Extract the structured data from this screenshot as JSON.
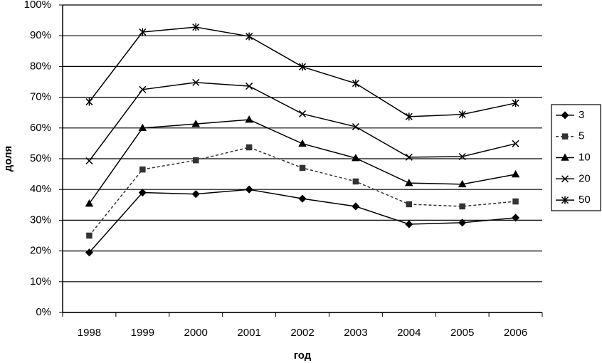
{
  "chart_data": {
    "type": "line",
    "x_label": "год",
    "y_label": "доля",
    "categories": [
      "1998",
      "1999",
      "2000",
      "2001",
      "2002",
      "2003",
      "2004",
      "2005",
      "2006"
    ],
    "series": [
      {
        "name": "3",
        "color": "#000000",
        "marker": "diamond",
        "dashed": false,
        "values": [
          19.5,
          39,
          38.5,
          40,
          37,
          34.5,
          28.7,
          29.2,
          30.8
        ]
      },
      {
        "name": "5",
        "color": "#333333",
        "marker": "square",
        "dashed": true,
        "values": [
          25,
          46.5,
          49.5,
          53.7,
          47,
          42.6,
          35.2,
          34.5,
          36.1
        ]
      },
      {
        "name": "10",
        "color": "#000000",
        "marker": "triangle",
        "dashed": false,
        "values": [
          35.4,
          60,
          61.3,
          62.7,
          54.9,
          50.2,
          42.1,
          41.7,
          44.9
        ]
      },
      {
        "name": "20",
        "color": "#000000",
        "marker": "x",
        "dashed": false,
        "values": [
          49.3,
          72.5,
          74.8,
          73.6,
          64.6,
          60.4,
          50.5,
          50.7,
          54.9
        ]
      },
      {
        "name": "50",
        "color": "#000000",
        "marker": "star",
        "dashed": false,
        "values": [
          68.5,
          91.2,
          92.8,
          89.8,
          79.9,
          74.5,
          63.7,
          64.4,
          68.1
        ]
      }
    ],
    "ylim": [
      0,
      100
    ],
    "yticks": [
      {
        "value": 0,
        "label": "0%"
      },
      {
        "value": 10,
        "label": "10%"
      },
      {
        "value": 20,
        "label": "20%"
      },
      {
        "value": 30,
        "label": "30%"
      },
      {
        "value": 40,
        "label": "40%"
      },
      {
        "value": 50,
        "label": "50%"
      },
      {
        "value": 60,
        "label": "60%"
      },
      {
        "value": 70,
        "label": "70%"
      },
      {
        "value": 80,
        "label": "80%"
      },
      {
        "value": 90,
        "label": "90%"
      },
      {
        "value": 100,
        "label": "100%"
      }
    ],
    "grid": true,
    "legend": "right"
  }
}
